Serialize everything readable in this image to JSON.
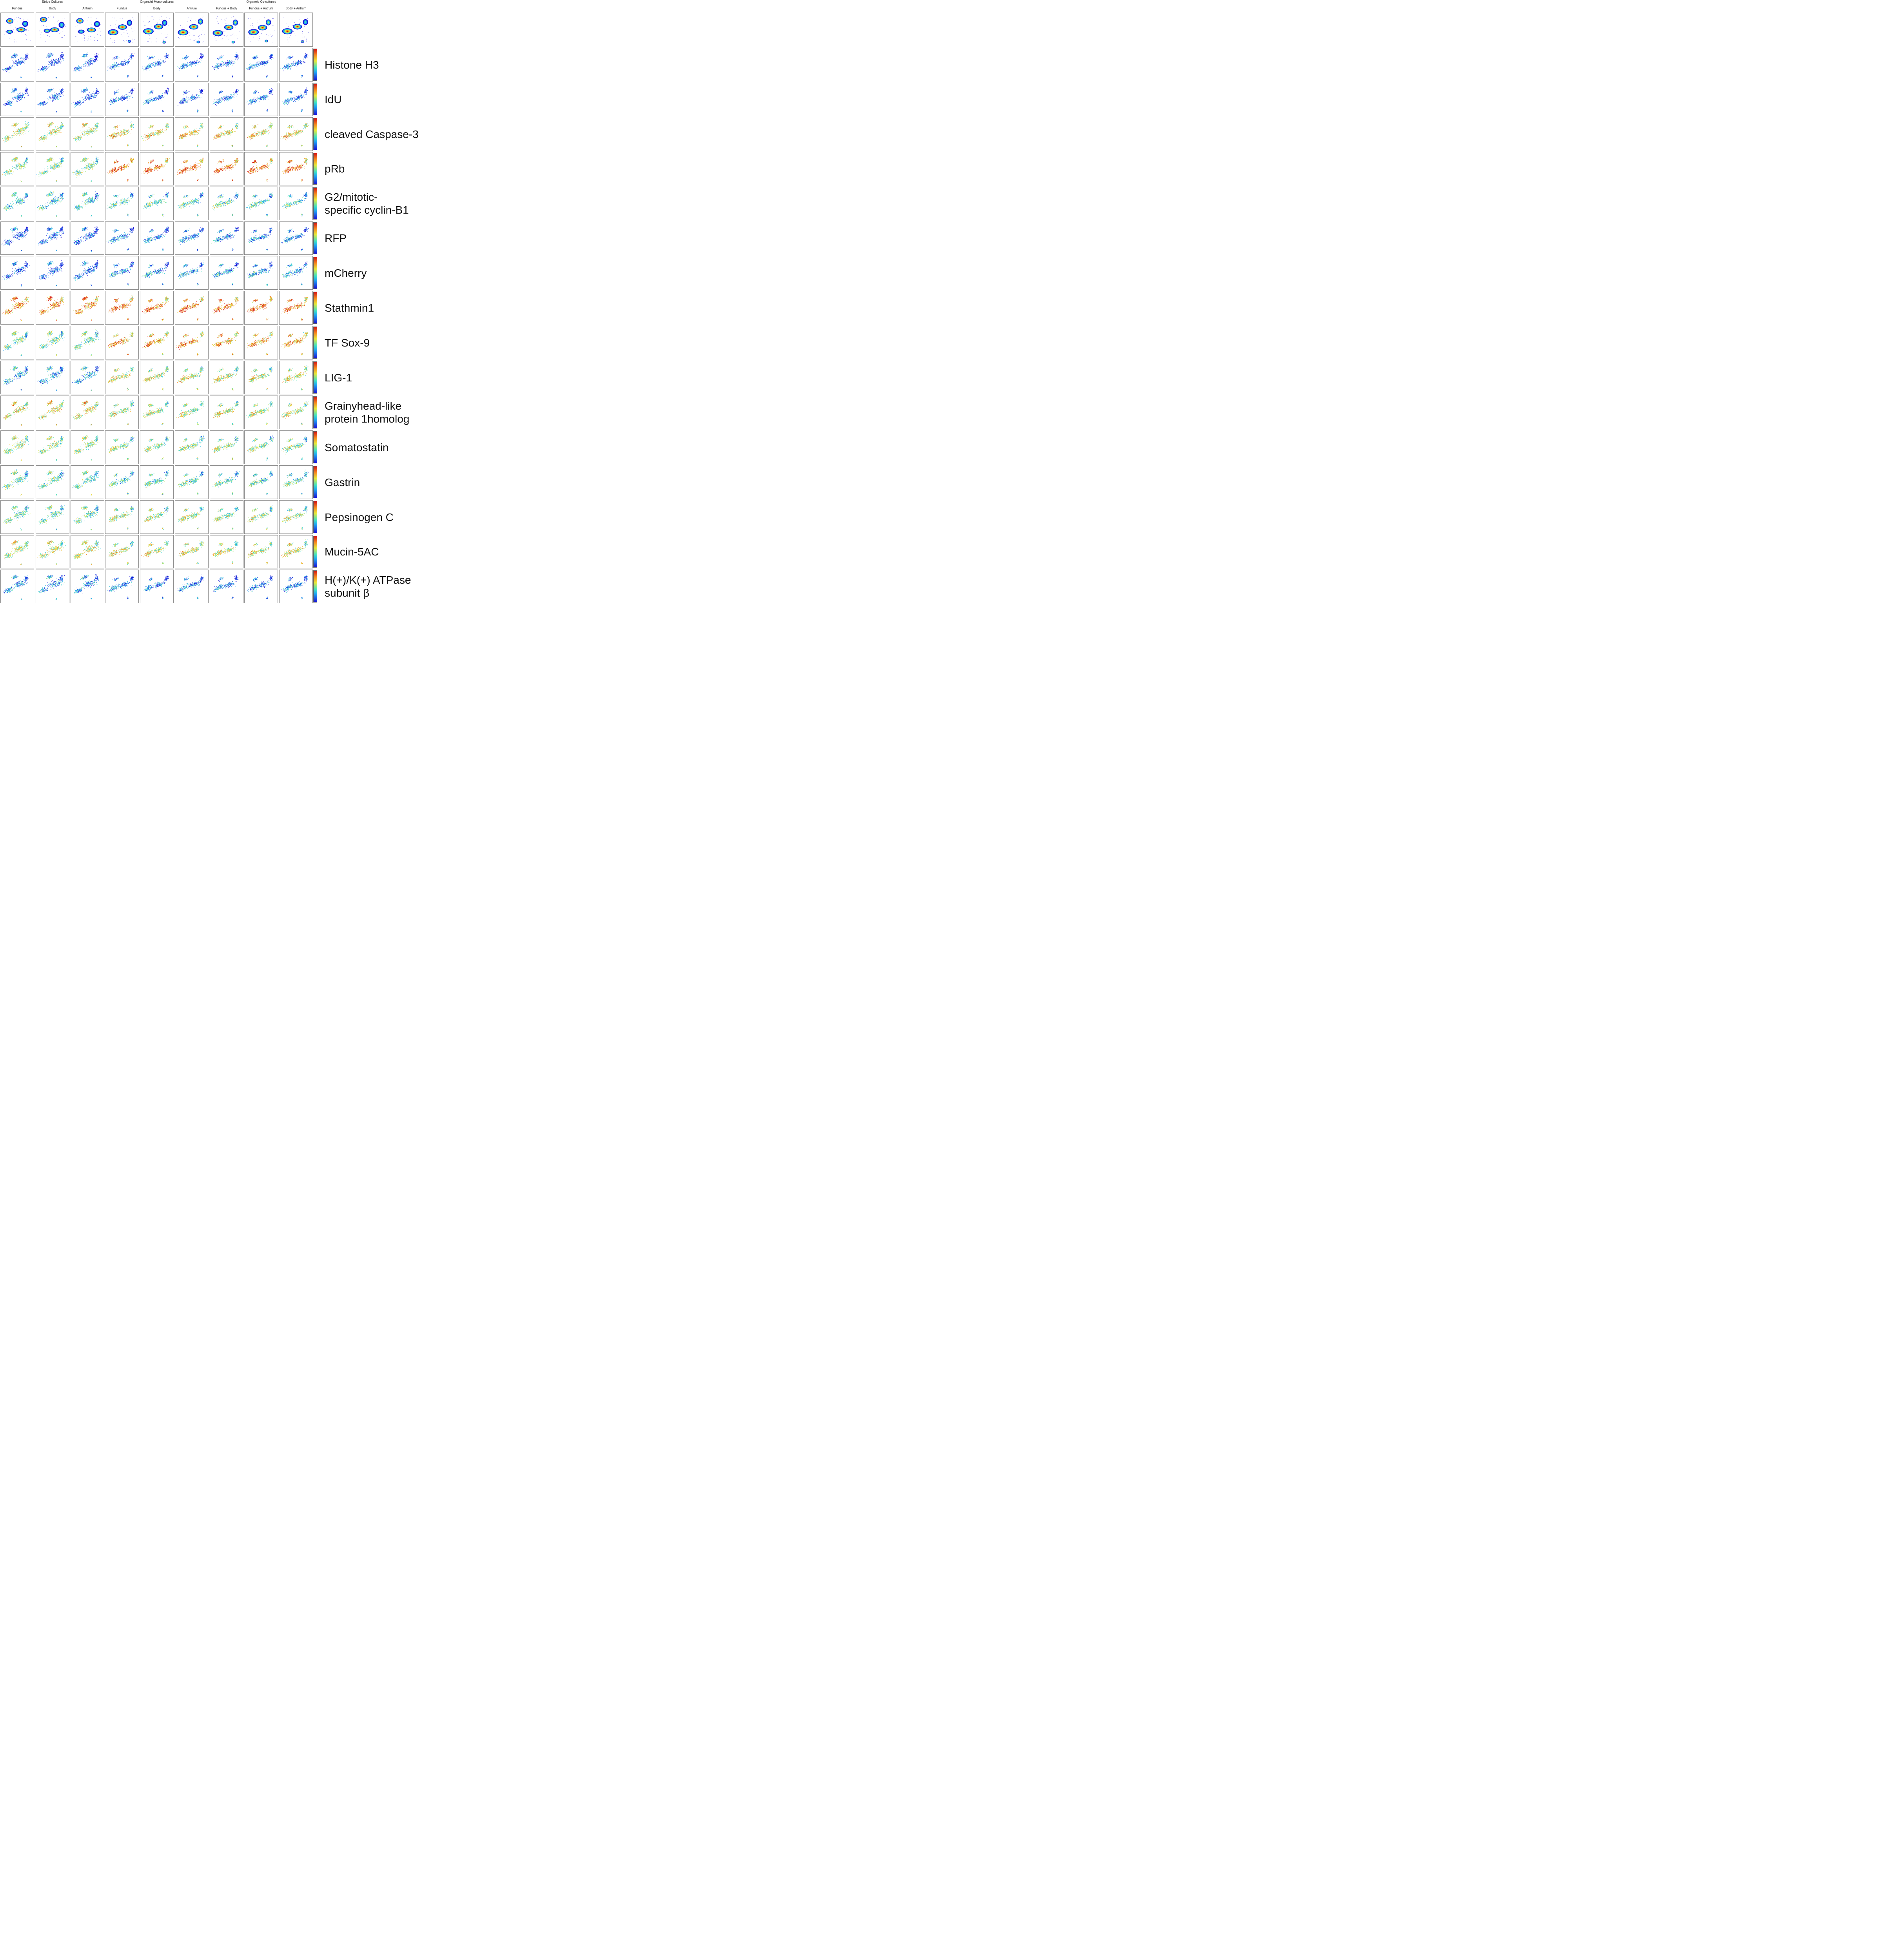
{
  "header": {
    "groups": [
      {
        "label": "Stripe Cultures"
      },
      {
        "label": "Organoid Mono-cultures"
      },
      {
        "label": "Organoid Co-cultures"
      }
    ],
    "columns": [
      {
        "label": "Fundus"
      },
      {
        "label": "Body"
      },
      {
        "label": "Antrum"
      },
      {
        "label": "Fundus"
      },
      {
        "label": "Body"
      },
      {
        "label": "Antrum"
      },
      {
        "label": "Fundus + Body"
      },
      {
        "label": "Fundus + Antrum"
      },
      {
        "label": "Body + Antrum"
      }
    ]
  },
  "markers": [
    {
      "lines": [
        "Histone H3"
      ]
    },
    {
      "lines": [
        "IdU"
      ]
    },
    {
      "lines": [
        "cleaved Caspase-3"
      ]
    },
    {
      "lines": [
        "pRb"
      ]
    },
    {
      "lines": [
        "G2/mitotic-",
        "specific cyclin-B1"
      ]
    },
    {
      "lines": [
        "RFP"
      ]
    },
    {
      "lines": [
        "mCherry"
      ]
    },
    {
      "lines": [
        "Stathmin1"
      ]
    },
    {
      "lines": [
        "TF Sox-9"
      ]
    },
    {
      "lines": [
        "LIG-1"
      ]
    },
    {
      "lines": [
        "Grainyhead-like",
        "protein 1homolog"
      ]
    },
    {
      "lines": [
        "Somatostatin"
      ]
    },
    {
      "lines": [
        "Gastrin"
      ]
    },
    {
      "lines": [
        "Pepsinogen C"
      ]
    },
    {
      "lines": [
        "Mucin-5AC"
      ]
    },
    {
      "lines": [
        "H(+)/K(+) ATPase",
        "subunit β"
      ]
    }
  ],
  "chart_data": {
    "type": "scatter",
    "description_rows": "row 0 = density maps per condition; rows 1-16 = marker expression colored on a blue-to-red scale",
    "colors": {
      "low": "#1a12d6",
      "mid_low": "#1fa4f0",
      "mid": "#3fe0c2",
      "mid_high": "#e6e63a",
      "high_orange": "#f58a1f",
      "high": "#d11414"
    }
  }
}
